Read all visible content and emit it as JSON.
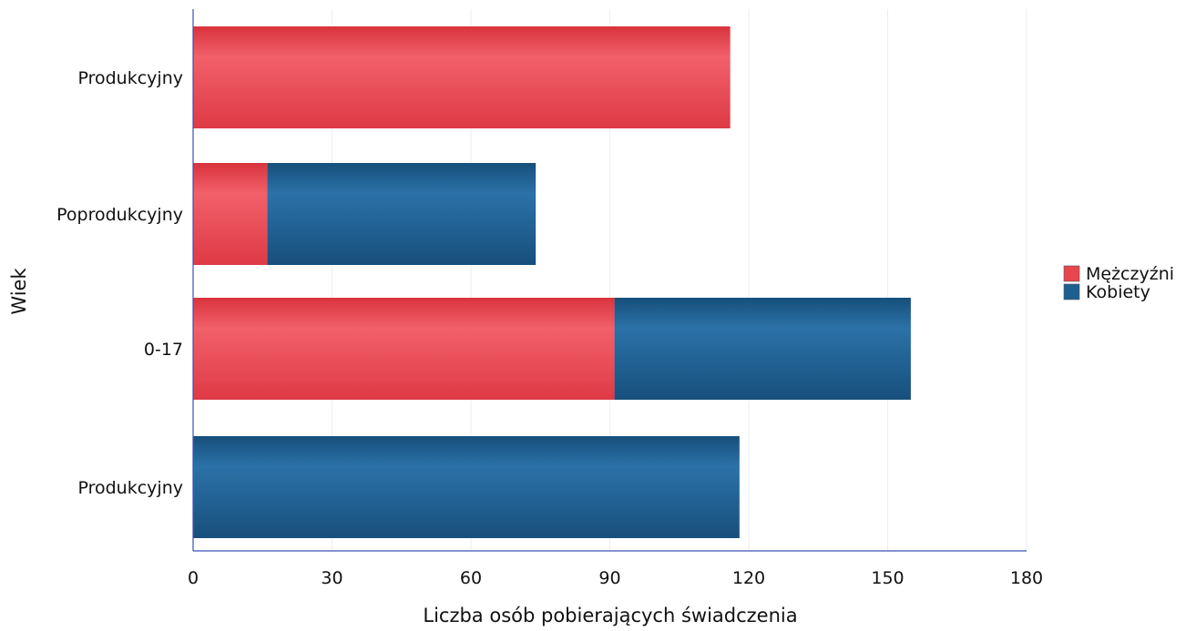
{
  "chart_data": {
    "type": "bar",
    "orientation": "horizontal",
    "stacked": true,
    "categories": [
      "Produkcyjny",
      "Poprodukcyjny",
      "0-17",
      "Produkcyjny"
    ],
    "series": [
      {
        "name": "Mężczyźni",
        "color": "#e8464f",
        "values": [
          116,
          16,
          91,
          0
        ]
      },
      {
        "name": "Kobiety",
        "color": "#1d5f91",
        "values": [
          0,
          58,
          64,
          118
        ]
      }
    ],
    "xlabel": "Liczba osób pobierających świadczenia",
    "ylabel": "Wiek",
    "xlim": [
      0,
      180
    ],
    "xticks": [
      0,
      30,
      60,
      90,
      120,
      150,
      180
    ],
    "grid": true,
    "legend_position": "right"
  }
}
